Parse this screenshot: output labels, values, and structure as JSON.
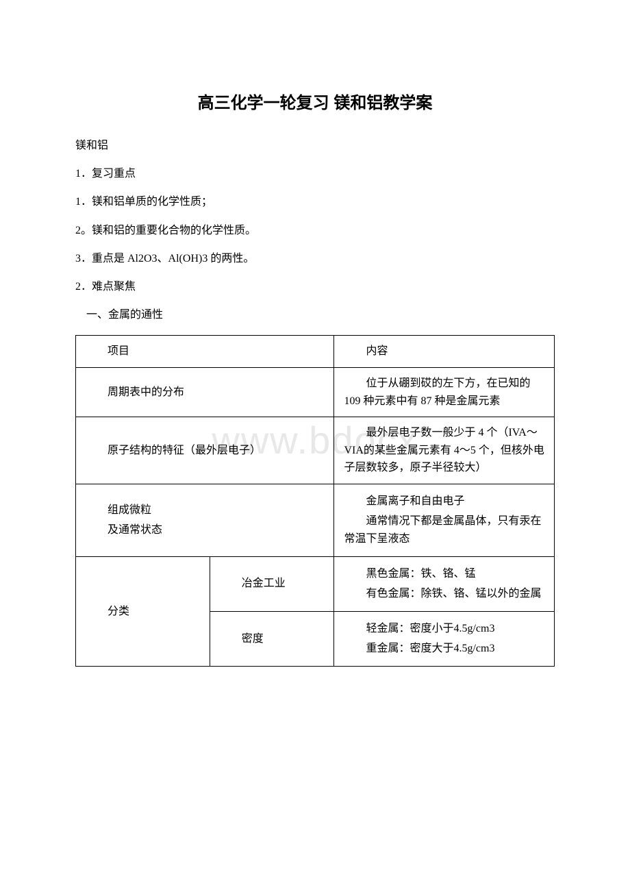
{
  "watermark": "www.bdocx",
  "title": "高三化学一轮复习 镁和铝教学案",
  "lines": {
    "l1": "镁和铝",
    "l2": "1．复习重点",
    "l3": "1．镁和铝单质的化学性质；",
    "l4": "2。镁和铝的重要化合物的化学性质。",
    "l5": "3．重点是 Al2O3、Al(OH)3 的两性。",
    "l6": "2．难点聚焦",
    "l7": "一、金属的通性"
  },
  "table": {
    "header": {
      "c1": "项目",
      "c2": "内容"
    },
    "row1": {
      "c1": "周期表中的分布",
      "c2": "位于从硼到砹的左下方，在已知的 109 种元素中有 87 种是金属元素"
    },
    "row2": {
      "c1": "原子结构的特征（最外层电子）",
      "c2": "最外层电子数一般少于 4 个（IVA～VIA的某些金属元素有 4～5 个，但核外电子层数较多，原子半径较大）"
    },
    "row3": {
      "c1a": "组成微粒",
      "c1b": "及通常状态",
      "c2a": "金属离子和自由电子",
      "c2b": "通常情况下都是金属晶体，只有汞在常温下呈液态"
    },
    "row4": {
      "c1": "分类",
      "sub1": {
        "label": "冶金工业",
        "v1": "黑色金属：铁、铬、锰",
        "v2": "有色金属：除铁、铬、锰以外的金属"
      },
      "sub2": {
        "label": "密度",
        "v1": "轻金属：密度小于4.5g/cm3",
        "v2": "重金属：密度大于4.5g/cm3"
      }
    }
  }
}
